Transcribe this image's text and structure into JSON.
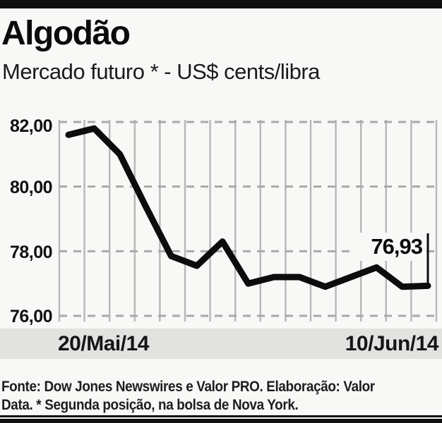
{
  "chart_data": {
    "type": "line",
    "title": "Algodão",
    "subtitle": "Mercado futuro * - US$ cents/libra",
    "unit": "US$ cents/libra",
    "x_start_label": "20/Mai/14",
    "x_end_label": "10/Jun/14",
    "ylim": [
      76,
      82
    ],
    "yticks": [
      82,
      80,
      78,
      76
    ],
    "ytick_labels": [
      "82,00",
      "80,00",
      "78,00",
      "76,00"
    ],
    "values": [
      81.6,
      81.8,
      81.0,
      79.4,
      77.85,
      77.55,
      78.3,
      77.0,
      77.2,
      77.2,
      76.9,
      77.2,
      77.5,
      76.9,
      76.93
    ],
    "last_value": 76.93,
    "last_value_label": "76,93",
    "grid": {
      "vertical_lines": 16,
      "horizontal_dashed": true,
      "legend": "none"
    },
    "line_color": "#0c0c0c",
    "grid_color": "#b7b7b7"
  },
  "footer": {
    "lines": [
      "Fonte: Dow Jones Newswires e Valor PRO. Elaboração: Valor",
      "Data. * Segunda posição, na bolsa de Nova York."
    ]
  }
}
